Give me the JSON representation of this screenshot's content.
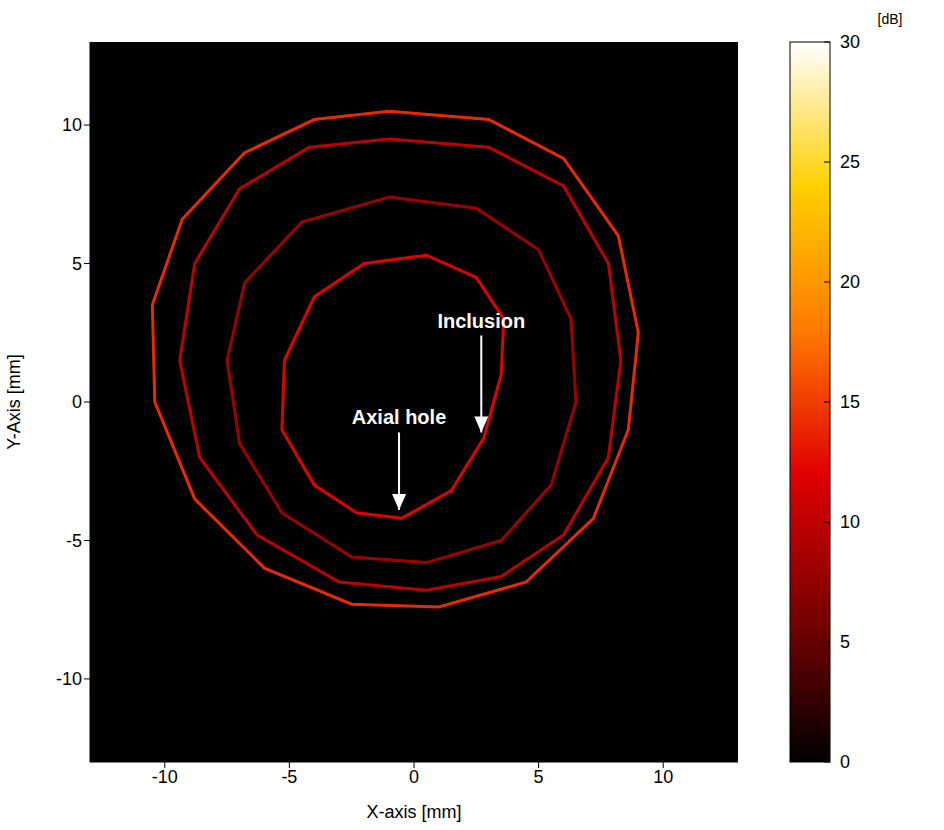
{
  "chart_data": {
    "type": "scatter",
    "xlabel": "X-axis [mm]",
    "ylabel": "Y-Axis [mm]",
    "xlim": [
      -13,
      13
    ],
    "ylim": [
      -13,
      13
    ],
    "xticks": [
      -10,
      -5,
      0,
      5,
      10
    ],
    "yticks": [
      -10,
      -5,
      0,
      5,
      10
    ],
    "grid": false,
    "background_level": 0,
    "series": [
      {
        "level": 14,
        "line_style": "solid",
        "marker": "none",
        "x": [
          -1,
          3,
          6,
          8.2,
          9,
          8.6,
          7.2,
          4.5,
          1,
          -2.5,
          -6,
          -8.8,
          -10.4,
          -10.5,
          -9.3,
          -6.8,
          -4,
          -1
        ],
        "y": [
          10.5,
          10.2,
          8.8,
          6,
          2.5,
          -1,
          -4.2,
          -6.5,
          -7.4,
          -7.3,
          -6,
          -3.5,
          0,
          3.5,
          6.6,
          9,
          10.2,
          10.5
        ]
      },
      {
        "level": 10,
        "line_style": "solid",
        "marker": "none",
        "x": [
          -1,
          3,
          6,
          7.8,
          8.3,
          7.8,
          6,
          3.5,
          0.5,
          -3,
          -6.3,
          -8.6,
          -9.4,
          -8.8,
          -7,
          -4.2,
          -1
        ],
        "y": [
          9.5,
          9.2,
          7.8,
          5,
          1.5,
          -2,
          -4.8,
          -6.3,
          -6.8,
          -6.5,
          -4.8,
          -2,
          1.5,
          5,
          7.7,
          9.2,
          9.5
        ]
      },
      {
        "level": 8,
        "line_style": "solid",
        "marker": "none",
        "x": [
          -1,
          2.5,
          5,
          6.3,
          6.5,
          5.5,
          3.5,
          0.5,
          -2.5,
          -5.3,
          -7,
          -7.5,
          -6.8,
          -4.5,
          -1
        ],
        "y": [
          7.4,
          7,
          5.5,
          3,
          0,
          -3,
          -5,
          -5.8,
          -5.6,
          -4,
          -1.5,
          1.5,
          4.3,
          6.5,
          7.4
        ]
      },
      {
        "level": 12,
        "line_style": "solid",
        "marker": "none",
        "x": [
          -0.5,
          1.5,
          2.8,
          3.5,
          3.6,
          2.5,
          0.5,
          -2,
          -4,
          -5.2,
          -5.3,
          -4,
          -2.3,
          -0.5
        ],
        "y": [
          -4.2,
          -3.2,
          -1.3,
          1,
          3,
          4.5,
          5.3,
          5,
          3.8,
          1.5,
          -1,
          -3,
          -4,
          -4.2
        ]
      }
    ],
    "annotations": [
      {
        "text": "Inclusion",
        "xy": [
          2.7,
          -1.1
        ],
        "xytext": [
          2.7,
          2.4
        ]
      },
      {
        "text": "Axial hole",
        "xy": [
          -0.6,
          -3.9
        ],
        "xytext": [
          -0.6,
          -1.1
        ]
      }
    ],
    "colorbar": {
      "label": "[dB]",
      "range": [
        0,
        30
      ],
      "ticks": [
        0,
        5,
        10,
        15,
        20,
        25,
        30
      ],
      "colors": [
        "#000000",
        "#7a0000",
        "#e00000",
        "#ff7a00",
        "#ffd000",
        "#ffffff"
      ]
    }
  }
}
